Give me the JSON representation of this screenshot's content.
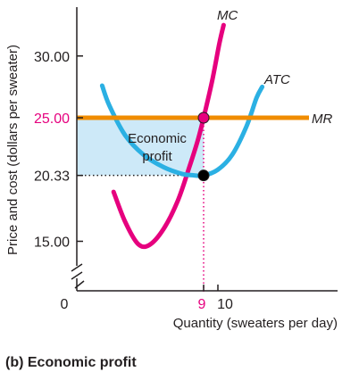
{
  "caption": "(b) Economic profit",
  "colors": {
    "mc": "#e6007e",
    "atc": "#2bb0e3",
    "mr": "#f08c00",
    "profit_area": "#cde9f8",
    "axis": "#231f20",
    "marker_black": "#000000"
  },
  "chart_data": {
    "type": "line",
    "title": "",
    "xlabel": "Quantity (sweaters per day)",
    "ylabel": "Price and cost (dollars per sweater)",
    "x_ticks": [
      {
        "value": 0,
        "label": "0"
      },
      {
        "value": 9,
        "label": "9",
        "highlight": true
      },
      {
        "value": 10,
        "label": "10"
      }
    ],
    "y_ticks": [
      {
        "value": 30,
        "label": "30.00"
      },
      {
        "value": 25,
        "label": "25.00",
        "highlight": true
      },
      {
        "value": 20.33,
        "label": "20.33"
      },
      {
        "value": 15,
        "label": "15.00"
      }
    ],
    "xlim": [
      0,
      14
    ],
    "ylim": [
      15,
      33
    ],
    "axis_breaks": [
      "x",
      "y"
    ],
    "grid": false,
    "series": [
      {
        "name": "MC",
        "color": "#e6007e",
        "points": [
          [
            2.7,
            19.0
          ],
          [
            3.5,
            16.6
          ],
          [
            4.4,
            14.8
          ],
          [
            5.2,
            14.7
          ],
          [
            6.2,
            16.0
          ],
          [
            7.2,
            18.3
          ],
          [
            8.0,
            21.0
          ],
          [
            8.6,
            23.2
          ],
          [
            9.0,
            25.0
          ],
          [
            9.6,
            28.0
          ],
          [
            10.1,
            31.0
          ],
          [
            10.4,
            32.5
          ]
        ]
      },
      {
        "name": "ATC",
        "color": "#2bb0e3",
        "points": [
          [
            1.9,
            27.6
          ],
          [
            2.4,
            26.0
          ],
          [
            3.5,
            23.6
          ],
          [
            4.8,
            22.0
          ],
          [
            6.2,
            21.0
          ],
          [
            7.5,
            20.45
          ],
          [
            8.2,
            20.35
          ],
          [
            9.0,
            20.33
          ],
          [
            10.0,
            20.8
          ],
          [
            11.0,
            22.0
          ],
          [
            12.0,
            24.3
          ],
          [
            12.7,
            26.6
          ],
          [
            13.1,
            27.5
          ]
        ]
      },
      {
        "name": "MR",
        "color": "#f08c00",
        "points": [
          [
            0,
            25.0
          ],
          [
            14.0,
            25.0
          ]
        ]
      }
    ],
    "shaded_region": {
      "label_lines": [
        "Economic",
        "profit"
      ],
      "x_range": [
        0,
        9
      ],
      "y_top": 25.0,
      "y_bottom": 20.33
    },
    "annotations": {
      "mc_label": "MC",
      "atc_label": "ATC",
      "mr_label": "MR"
    },
    "markers": [
      {
        "x": 9,
        "y": 25.0,
        "fill": "#e6007e"
      },
      {
        "x": 9,
        "y": 20.33,
        "fill": "#000000"
      }
    ],
    "guide_lines": [
      {
        "kind": "vertical-dotted",
        "x": 9,
        "from_y": 15,
        "to_y": 25.0,
        "color": "#e6007e"
      },
      {
        "kind": "horizontal-dotted",
        "y": 20.33,
        "from_x": 0,
        "to_x": 9,
        "color": "#231f20"
      }
    ]
  }
}
